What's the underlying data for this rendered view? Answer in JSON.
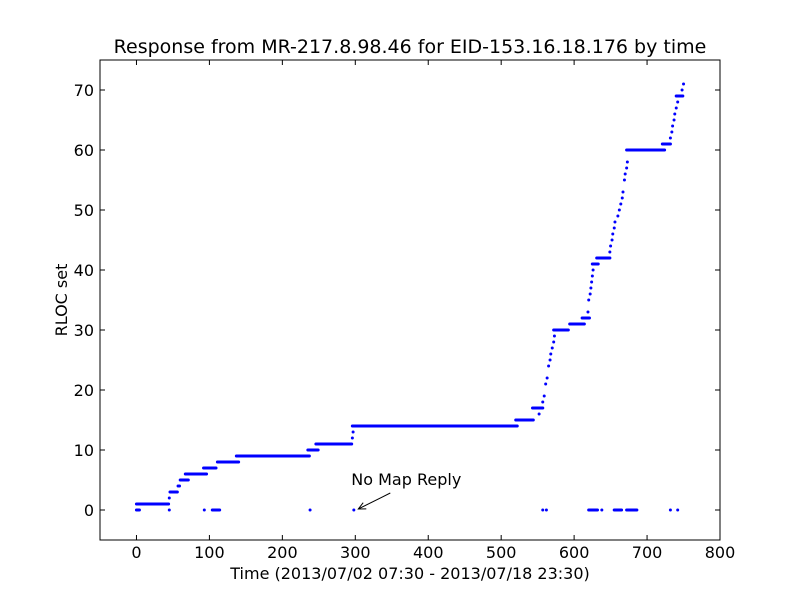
{
  "chart_data": {
    "type": "scatter",
    "title": "Response from MR-217.8.98.46 for EID-153.16.18.176 by time",
    "xlabel": "Time (2013/07/02 07:30 - 2013/07/18 23:30)",
    "ylabel": "RLOC set",
    "xlim": [
      -50,
      800
    ],
    "ylim": [
      -5,
      75
    ],
    "xticks": [
      0,
      100,
      200,
      300,
      400,
      500,
      600,
      700,
      800
    ],
    "yticks": [
      0,
      10,
      20,
      30,
      40,
      50,
      60,
      70
    ],
    "grid": false,
    "legend": "none",
    "series_color": "#0000ff",
    "segments": [
      {
        "x_start": 2,
        "x_end": 42,
        "y": 1
      },
      {
        "x_start": 48,
        "x_end": 54,
        "y": 3
      },
      {
        "x_start": 62,
        "x_end": 69,
        "y": 5
      },
      {
        "x_start": 69,
        "x_end": 94,
        "y": 6
      },
      {
        "x_start": 94,
        "x_end": 107,
        "y": 7
      },
      {
        "x_start": 113,
        "x_end": 138,
        "y": 8
      },
      {
        "x_start": 139,
        "x_end": 235,
        "y": 9
      },
      {
        "x_start": 237,
        "x_end": 247,
        "y": 10
      },
      {
        "x_start": 248,
        "x_end": 293,
        "y": 11
      },
      {
        "x_start": 298,
        "x_end": 520,
        "y": 14
      },
      {
        "x_start": 522,
        "x_end": 542,
        "y": 15
      },
      {
        "x_start": 545,
        "x_end": 555,
        "y": 17
      },
      {
        "x_start": 574,
        "x_end": 590,
        "y": 30
      },
      {
        "x_start": 596,
        "x_end": 612,
        "y": 31
      },
      {
        "x_start": 613,
        "x_end": 619,
        "y": 32
      },
      {
        "x_start": 627,
        "x_end": 631,
        "y": 41
      },
      {
        "x_start": 633,
        "x_end": 647,
        "y": 42
      },
      {
        "x_start": 674,
        "x_end": 722,
        "y": 60
      },
      {
        "x_start": 723,
        "x_end": 730,
        "y": 61
      },
      {
        "x_start": 742,
        "x_end": 747,
        "y": 69
      },
      {
        "x_start": 2,
        "x_end": 2,
        "y": 0
      },
      {
        "x_start": 622,
        "x_end": 630,
        "y": 0
      },
      {
        "x_start": 657,
        "x_end": 663,
        "y": 0
      },
      {
        "x_start": 674,
        "x_end": 684,
        "y": 0
      },
      {
        "x_start": 106,
        "x_end": 112,
        "y": 0
      }
    ],
    "points": [
      [
        45,
        2
      ],
      [
        57,
        4
      ],
      [
        59,
        4
      ],
      [
        149,
        9
      ],
      [
        296,
        12
      ],
      [
        297,
        13
      ],
      [
        552,
        16
      ],
      [
        557,
        18
      ],
      [
        559,
        19
      ],
      [
        561,
        21
      ],
      [
        563,
        22
      ],
      [
        565,
        24
      ],
      [
        567,
        25
      ],
      [
        568,
        26
      ],
      [
        570,
        27
      ],
      [
        572,
        28
      ],
      [
        573,
        29
      ],
      [
        619,
        33
      ],
      [
        620,
        35
      ],
      [
        622,
        36
      ],
      [
        623,
        37
      ],
      [
        624,
        38
      ],
      [
        625,
        39
      ],
      [
        626,
        40
      ],
      [
        649,
        43
      ],
      [
        650,
        44
      ],
      [
        652,
        45
      ],
      [
        653,
        46
      ],
      [
        655,
        47
      ],
      [
        656,
        48
      ],
      [
        660,
        49
      ],
      [
        662,
        50
      ],
      [
        664,
        51
      ],
      [
        666,
        52
      ],
      [
        667,
        53
      ],
      [
        669,
        55
      ],
      [
        670,
        56
      ],
      [
        672,
        57
      ],
      [
        673,
        58
      ],
      [
        732,
        62
      ],
      [
        734,
        63
      ],
      [
        735,
        64
      ],
      [
        737,
        65
      ],
      [
        738,
        66
      ],
      [
        740,
        67
      ],
      [
        742,
        68
      ],
      [
        748,
        70
      ],
      [
        750,
        71
      ],
      [
        45,
        0
      ],
      [
        93,
        0
      ],
      [
        238,
        0
      ],
      [
        298,
        0
      ],
      [
        557,
        0
      ],
      [
        562,
        0
      ],
      [
        638,
        0
      ],
      [
        732,
        0
      ],
      [
        742,
        0
      ]
    ],
    "annotations": [
      {
        "text": "No Map Reply",
        "x": 300,
        "y": 0,
        "text_x": 300,
        "text_y": 4.2
      }
    ]
  }
}
